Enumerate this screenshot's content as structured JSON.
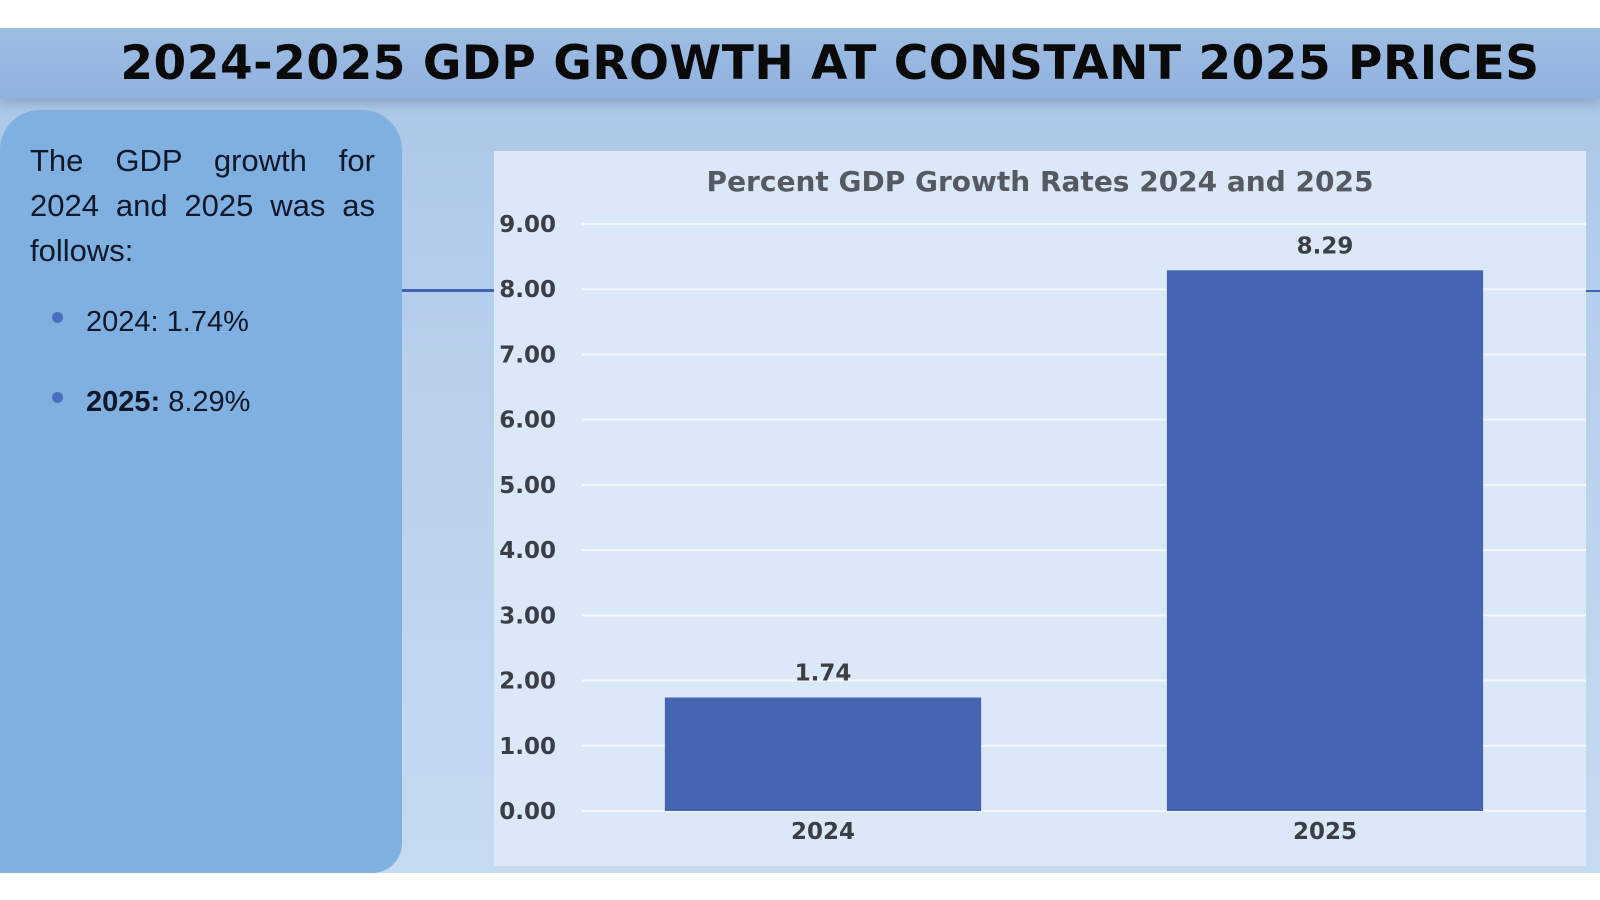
{
  "slide": {
    "title": "2024-2025 GDP GROWTH  AT CONSTANT 2025 PRICES",
    "intro": "The GDP growth for 2024 and 2025 was as follows:",
    "bullets": [
      {
        "label": "2024:",
        "value": " 1.74%",
        "bold_label": false
      },
      {
        "label": "2025:",
        "value": " 8.29%",
        "bold_label": true
      }
    ]
  },
  "colors": {
    "bar": "#4565b0",
    "gridline": "#f4f8fd",
    "accent": "#3f63b8"
  },
  "chart_data": {
    "type": "bar",
    "title": "Percent GDP Growth Rates 2024 and 2025",
    "categories": [
      "2024",
      "2025"
    ],
    "values": [
      1.74,
      8.29
    ],
    "data_labels": [
      "1.74",
      "8.29"
    ],
    "xlabel": "",
    "ylabel": "",
    "ylim": [
      0,
      9
    ],
    "yticks": [
      "0.00",
      "1.00",
      "2.00",
      "3.00",
      "4.00",
      "5.00",
      "6.00",
      "7.00",
      "8.00",
      "9.00"
    ],
    "grid": true,
    "legend": "none"
  }
}
